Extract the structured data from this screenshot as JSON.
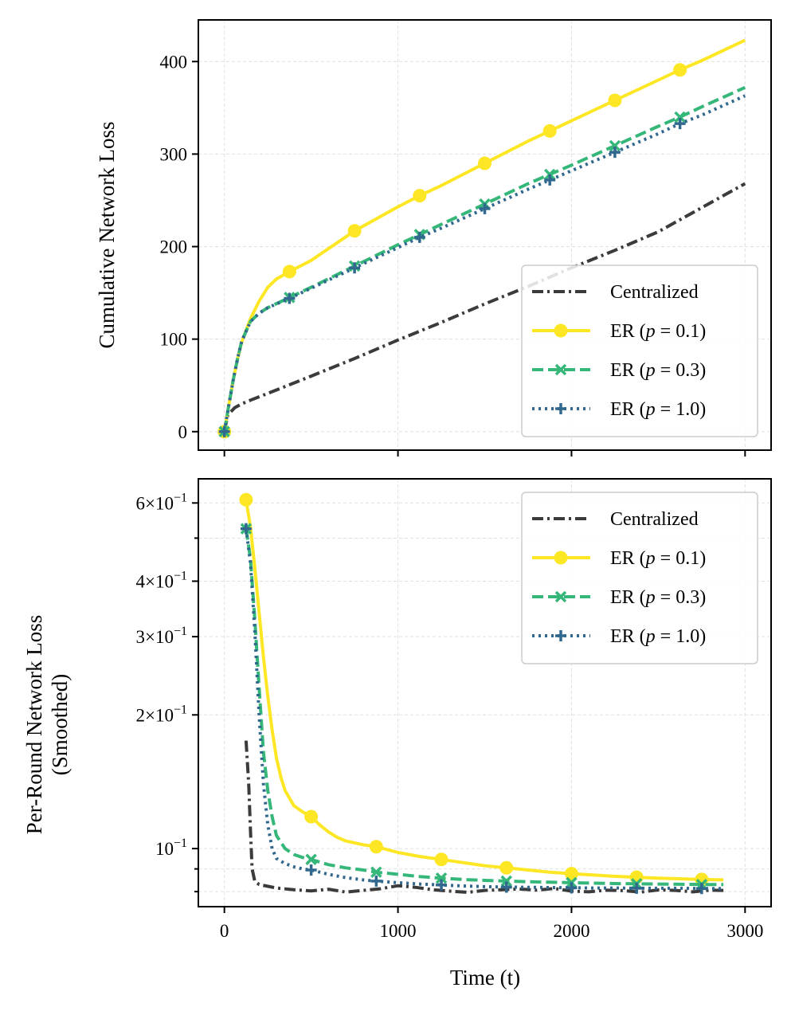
{
  "figure": {
    "xlabel": "Time (t)"
  },
  "legend": {
    "items": [
      {
        "label": "Centralized",
        "color": "#3b3b3b",
        "marker": "none",
        "dash": "dashdot-dense"
      },
      {
        "label": "ER (p = 0.1)",
        "prefix": "ER (",
        "var": "p",
        "suffix": " = 0.1)",
        "color": "#fde725",
        "marker": "circle",
        "dash": "solid"
      },
      {
        "label": "ER (p = 0.3)",
        "prefix": "ER (",
        "var": "p",
        "suffix": " = 0.3)",
        "color": "#35b779",
        "marker": "x",
        "dash": "dashed"
      },
      {
        "label": "ER (p = 1.0)",
        "prefix": "ER (",
        "var": "p",
        "suffix": " = 1.0)",
        "color": "#31688e",
        "marker": "plus",
        "dash": "dotted"
      }
    ]
  },
  "chart_data": [
    {
      "type": "line",
      "ylabel": "Cumulative Network Loss",
      "xlabel": "",
      "xlim": [
        -150,
        3150
      ],
      "ylim": [
        -20,
        445
      ],
      "xticks": [
        0,
        1000,
        2000,
        3000
      ],
      "yticks": [
        0,
        100,
        200,
        300,
        400
      ],
      "ytick_labels": [
        "0",
        "100",
        "200",
        "300",
        "400"
      ],
      "grid": true,
      "legend_position": "lower right",
      "series": [
        {
          "name": "Centralized",
          "x": [
            0,
            20,
            60,
            100,
            150,
            300,
            500,
            750,
            1000,
            1250,
            1500,
            1750,
            2000,
            2250,
            2500,
            2750,
            3000
          ],
          "y": [
            0,
            18,
            26,
            30,
            34,
            45,
            60,
            79,
            99,
            118,
            138,
            157,
            177,
            196,
            216,
            242,
            268
          ]
        },
        {
          "name": "ER (p = 0.1)",
          "x": [
            0,
            25,
            50,
            75,
            100,
            150,
            200,
            250,
            300,
            375,
            500,
            750,
            1000,
            1125,
            1250,
            1500,
            1750,
            1875,
            2000,
            2250,
            2500,
            2625,
            2750,
            3000
          ],
          "y": [
            0,
            28,
            55,
            78,
            97,
            122,
            141,
            156,
            165,
            173,
            185,
            217,
            243,
            255,
            266,
            290,
            314,
            325,
            336,
            358,
            380,
            391,
            401,
            423
          ],
          "markers_x": [
            0,
            375,
            750,
            1125,
            1500,
            1875,
            2250,
            2625
          ],
          "markers_y": [
            0,
            173,
            217,
            255,
            290,
            325,
            358,
            391
          ]
        },
        {
          "name": "ER (p = 0.3)",
          "x": [
            0,
            25,
            50,
            75,
            100,
            150,
            200,
            250,
            375,
            500,
            750,
            1000,
            1125,
            1250,
            1500,
            1750,
            1875,
            2000,
            2250,
            2500,
            2625,
            2750,
            3000
          ],
          "y": [
            0,
            28,
            55,
            78,
            98,
            119,
            128,
            134,
            145,
            156,
            179,
            202,
            213,
            224,
            246,
            268,
            278,
            288,
            309,
            330,
            340,
            351,
            372
          ],
          "markers_x": [
            0,
            375,
            750,
            1125,
            1500,
            1875,
            2250,
            2625
          ],
          "markers_y": [
            0,
            145,
            179,
            213,
            246,
            278,
            309,
            340
          ]
        },
        {
          "name": "ER (p = 1.0)",
          "x": [
            0,
            25,
            50,
            75,
            100,
            150,
            200,
            250,
            375,
            500,
            750,
            1000,
            1125,
            1250,
            1500,
            1750,
            1875,
            2000,
            2250,
            2500,
            2625,
            2750,
            3000
          ],
          "y": [
            0,
            28,
            55,
            78,
            98,
            119,
            128,
            134,
            144,
            155,
            177,
            199,
            210,
            220,
            241,
            262,
            272,
            282,
            302,
            322,
            333,
            342,
            363
          ],
          "markers_x": [
            0,
            375,
            750,
            1125,
            1500,
            1875,
            2250,
            2625
          ],
          "markers_y": [
            0,
            144,
            177,
            210,
            241,
            272,
            302,
            333
          ]
        }
      ]
    },
    {
      "type": "line",
      "yscale": "log",
      "ylabel": "Per-Round Network Loss",
      "ylabel_line2": "(Smoothed)",
      "xlabel": "Time (t)",
      "xlim": [
        -150,
        3150
      ],
      "ylim": [
        0.074,
        0.68
      ],
      "xticks": [
        0,
        1000,
        2000,
        3000
      ],
      "xtick_labels": [
        "0",
        "1000",
        "2000",
        "3000"
      ],
      "major_yticks": [
        {
          "value": 0.1,
          "mantissa": "",
          "exponent": "−1",
          "base": "10"
        },
        {
          "value": 0.2,
          "mantissa": "2×",
          "exponent": "−1",
          "base": "10"
        },
        {
          "value": 0.3,
          "mantissa": "3×",
          "exponent": "−1",
          "base": "10"
        },
        {
          "value": 0.4,
          "mantissa": "4×",
          "exponent": "−1",
          "base": "10"
        },
        {
          "value": 0.6,
          "mantissa": "6×",
          "exponent": "−1",
          "base": "10"
        }
      ],
      "minor_yticks": [
        0.08,
        0.09,
        0.5
      ],
      "grid": true,
      "legend_position": "upper right",
      "series": [
        {
          "name": "Centralized",
          "x": [
            125,
            140,
            150,
            160,
            175,
            200,
            300,
            400,
            500,
            600,
            700,
            800,
            900,
            1000,
            1100,
            1200,
            1300,
            1400,
            1500,
            1600,
            1700,
            1800,
            1900,
            2000,
            2100,
            2200,
            2300,
            2400,
            2500,
            2600,
            2700,
            2800,
            2875
          ],
          "y": [
            0.175,
            0.14,
            0.11,
            0.09,
            0.0845,
            0.083,
            0.0815,
            0.0808,
            0.0803,
            0.081,
            0.0798,
            0.0805,
            0.0812,
            0.0825,
            0.0818,
            0.0808,
            0.0802,
            0.0797,
            0.0805,
            0.0808,
            0.0811,
            0.0806,
            0.0813,
            0.0802,
            0.0799,
            0.0806,
            0.0804,
            0.0798,
            0.0807,
            0.0805,
            0.0799,
            0.0806,
            0.0805
          ]
        },
        {
          "name": "ER (p = 0.1)",
          "x": [
            125,
            150,
            175,
            200,
            225,
            250,
            275,
            300,
            325,
            350,
            400,
            450,
            500,
            550,
            600,
            650,
            700,
            750,
            800,
            875,
            1000,
            1125,
            1250,
            1375,
            1500,
            1625,
            1750,
            1875,
            2000,
            2125,
            2250,
            2375,
            2500,
            2625,
            2750,
            2875
          ],
          "y": [
            0.61,
            0.53,
            0.43,
            0.34,
            0.27,
            0.22,
            0.185,
            0.16,
            0.145,
            0.135,
            0.125,
            0.121,
            0.118,
            0.113,
            0.109,
            0.106,
            0.104,
            0.103,
            0.102,
            0.101,
            0.098,
            0.096,
            0.0945,
            0.093,
            0.0915,
            0.0905,
            0.0895,
            0.0885,
            0.0878,
            0.0872,
            0.0866,
            0.0862,
            0.0858,
            0.0855,
            0.0852,
            0.085
          ],
          "markers_x": [
            125,
            500,
            875,
            1250,
            1625,
            2000,
            2375,
            2750
          ],
          "markers_y": [
            0.61,
            0.118,
            0.101,
            0.0945,
            0.0905,
            0.0878,
            0.0862,
            0.0852
          ]
        },
        {
          "name": "ER (p = 0.3)",
          "x": [
            125,
            150,
            175,
            200,
            225,
            250,
            275,
            300,
            350,
            400,
            450,
            500,
            600,
            700,
            800,
            875,
            1000,
            1125,
            1250,
            1375,
            1500,
            1625,
            1750,
            1875,
            2000,
            2125,
            2250,
            2375,
            2500,
            2625,
            2750,
            2875
          ],
          "y": [
            0.525,
            0.45,
            0.33,
            0.23,
            0.165,
            0.135,
            0.118,
            0.107,
            0.1,
            0.097,
            0.0955,
            0.0945,
            0.092,
            0.0905,
            0.0895,
            0.0885,
            0.0875,
            0.0865,
            0.0858,
            0.0852,
            0.0848,
            0.0845,
            0.0842,
            0.084,
            0.0838,
            0.0836,
            0.0834,
            0.0833,
            0.0832,
            0.0831,
            0.083,
            0.083
          ],
          "markers_x": [
            125,
            500,
            875,
            1250,
            1625,
            2000,
            2375,
            2750
          ],
          "markers_y": [
            0.525,
            0.0945,
            0.0885,
            0.0858,
            0.0845,
            0.0838,
            0.0833,
            0.083
          ]
        },
        {
          "name": "ER (p = 1.0)",
          "x": [
            125,
            150,
            175,
            200,
            225,
            250,
            275,
            300,
            350,
            400,
            450,
            500,
            600,
            700,
            800,
            875,
            1000,
            1125,
            1250,
            1375,
            1500,
            1625,
            1750,
            1875,
            2000,
            2125,
            2250,
            2375,
            2500,
            2625,
            2750,
            2875
          ],
          "y": [
            0.525,
            0.44,
            0.31,
            0.2,
            0.14,
            0.113,
            0.1,
            0.095,
            0.0925,
            0.091,
            0.09,
            0.0895,
            0.0875,
            0.086,
            0.085,
            0.0845,
            0.0838,
            0.0832,
            0.0828,
            0.0824,
            0.0821,
            0.0819,
            0.0818,
            0.0817,
            0.0816,
            0.0815,
            0.0815,
            0.0814,
            0.0814,
            0.0814,
            0.0813,
            0.0813
          ],
          "markers_x": [
            125,
            500,
            875,
            1250,
            1625,
            2000,
            2375,
            2750
          ],
          "markers_y": [
            0.525,
            0.0895,
            0.0845,
            0.0828,
            0.0819,
            0.0816,
            0.0814,
            0.0813
          ]
        }
      ]
    }
  ]
}
